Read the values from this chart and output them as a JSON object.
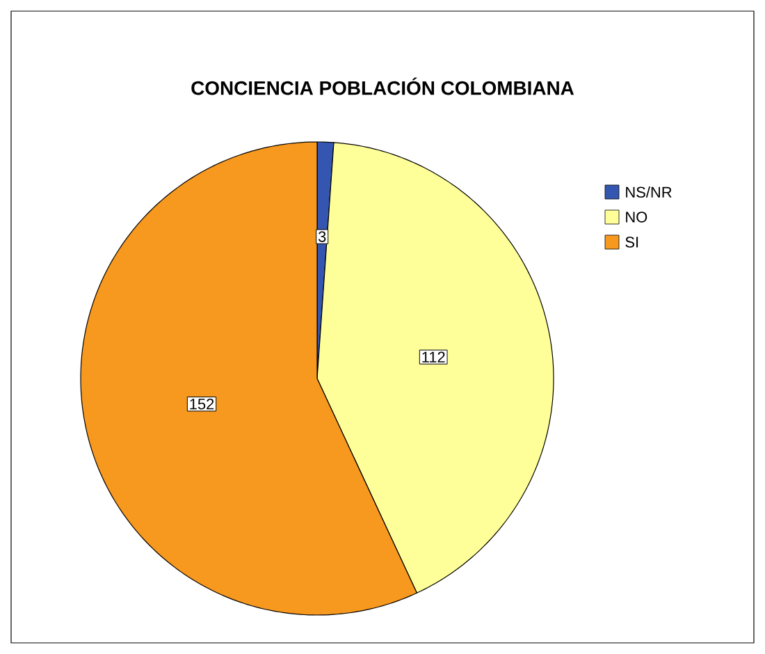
{
  "chart_data": {
    "type": "pie",
    "title": "CONCIENCIA POBLACIÓN COLOMBIANA",
    "categories": [
      "NS/NR",
      "NO",
      "SI"
    ],
    "values": [
      3,
      112,
      152
    ],
    "colors": [
      "#3556b0",
      "#ffff99",
      "#f7981f"
    ],
    "data_labels": true,
    "legend": "right"
  }
}
